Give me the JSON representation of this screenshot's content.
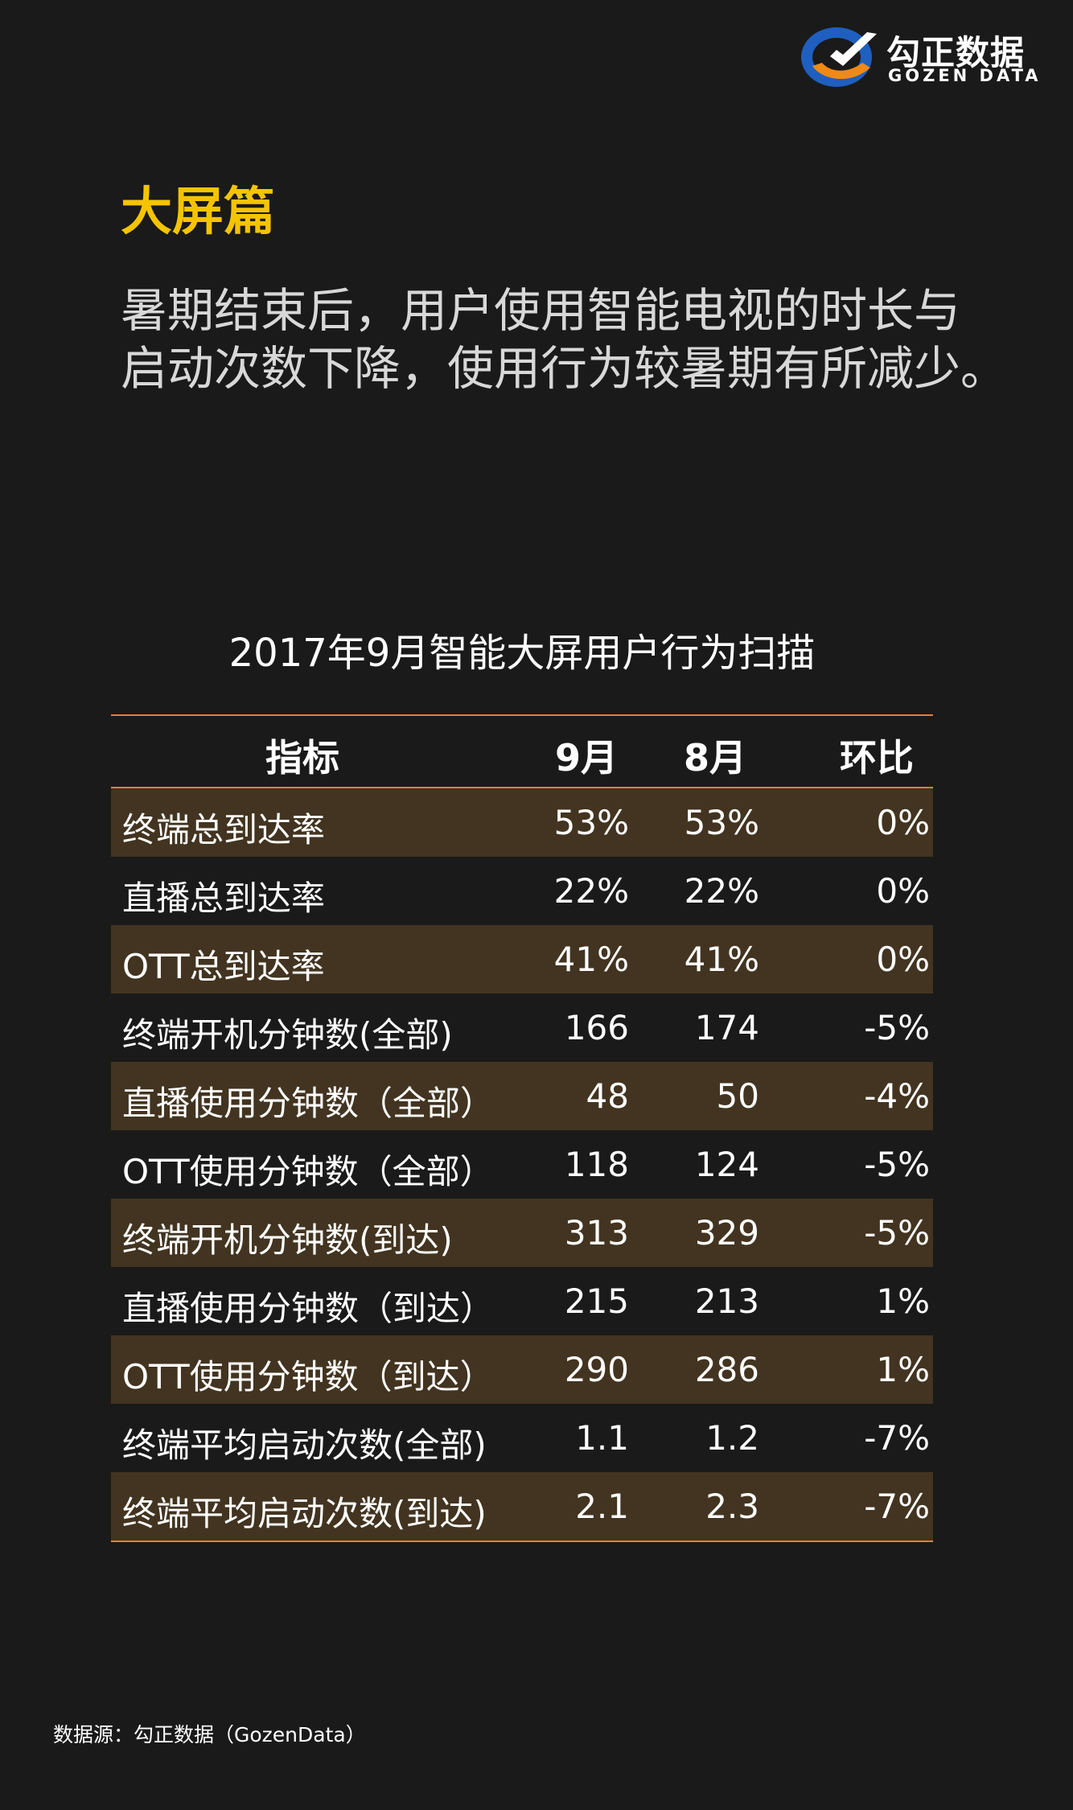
{
  "brand": {
    "name_cn": "勾正数据",
    "name_en": "GOZEN DATA",
    "colors": {
      "blue": "#1f5fbf",
      "orange": "#f08a16"
    }
  },
  "section_title": "大屏篇",
  "lead_lines": [
    "暑期结束后，用户使用智能电视的时长与",
    "启动次数下降，使用行为较暑期有所减少。"
  ],
  "accent_colors": {
    "title": "#f5c400",
    "rule": "#e87d3e",
    "row_band": "#423420"
  },
  "chart_data": {
    "type": "table",
    "title": "2017年9月智能大屏用户行为扫描",
    "columns": [
      "指标",
      "9月",
      "8月",
      "环比"
    ],
    "rows": [
      [
        "终端总到达率",
        "53%",
        "53%",
        "0%"
      ],
      [
        "直播总到达率",
        "22%",
        "22%",
        "0%"
      ],
      [
        "OTT总到达率",
        "41%",
        "41%",
        "0%"
      ],
      [
        "终端开机分钟数(全部)",
        "166",
        "174",
        "-5%"
      ],
      [
        "直播使用分钟数（全部）",
        "48",
        "50",
        "-4%"
      ],
      [
        "OTT使用分钟数（全部）",
        "118",
        "124",
        "-5%"
      ],
      [
        "终端开机分钟数(到达)",
        "313",
        "329",
        "-5%"
      ],
      [
        "直播使用分钟数（到达）",
        "215",
        "213",
        "1%"
      ],
      [
        "OTT使用分钟数（到达）",
        "290",
        "286",
        "1%"
      ],
      [
        "终端平均启动次数(全部)",
        "1.1",
        "1.2",
        "-7%"
      ],
      [
        "终端平均启动次数(到达)",
        "2.1",
        "2.3",
        "-7%"
      ]
    ]
  },
  "source": "数据源：勾正数据（GozenData）"
}
